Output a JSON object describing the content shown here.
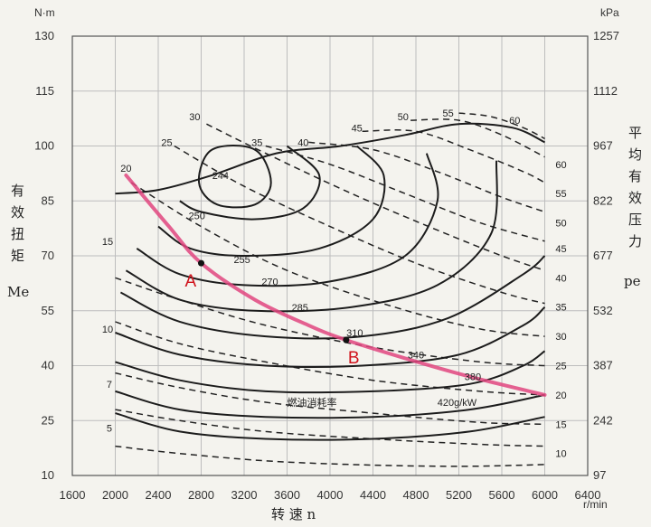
{
  "chart_data": {
    "type": "line",
    "x_axis": {
      "unit": "r/min",
      "title": "转 速 n",
      "ticks": [
        1600,
        2000,
        2400,
        2800,
        3200,
        3600,
        4000,
        4400,
        4800,
        5200,
        5600,
        6000,
        6400
      ],
      "range": [
        1600,
        6400
      ]
    },
    "y_left": {
      "unit": "N·m",
      "title": [
        "有",
        "效",
        "扭",
        "矩"
      ],
      "symbol": "Me",
      "ticks": [
        10,
        25,
        40,
        55,
        70,
        85,
        100,
        115,
        130
      ],
      "range": [
        10,
        130
      ]
    },
    "y_right": {
      "unit": "kPa",
      "title": [
        "平",
        "均",
        "有",
        "效",
        "压",
        "力"
      ],
      "symbol": "pe",
      "ticks": [
        97,
        242,
        387,
        532,
        677,
        822,
        967,
        1112,
        1257
      ]
    },
    "power_line_labels": [
      {
        "label": "60",
        "x": 6100,
        "y": 95
      },
      {
        "label": "55",
        "x": 6100,
        "y": 87
      },
      {
        "label": "50",
        "x": 6100,
        "y": 79
      },
      {
        "label": "45",
        "x": 6100,
        "y": 72
      },
      {
        "label": "40",
        "x": 6100,
        "y": 64
      },
      {
        "label": "35",
        "x": 6100,
        "y": 56
      },
      {
        "label": "30",
        "x": 6100,
        "y": 48
      },
      {
        "label": "25",
        "x": 6100,
        "y": 40
      },
      {
        "label": "20",
        "x": 6100,
        "y": 32
      },
      {
        "label": "15",
        "x": 6100,
        "y": 24
      },
      {
        "label": "10",
        "x": 6100,
        "y": 16
      }
    ],
    "power_top_labels": [
      {
        "label": "20",
        "x": 2100,
        "y": 93
      },
      {
        "label": "25",
        "x": 2480,
        "y": 100
      },
      {
        "label": "30",
        "x": 2740,
        "y": 107
      },
      {
        "label": "35",
        "x": 3320,
        "y": 100
      },
      {
        "label": "40",
        "x": 3750,
        "y": 100
      },
      {
        "label": "45",
        "x": 4250,
        "y": 104
      },
      {
        "label": "50",
        "x": 4680,
        "y": 107
      },
      {
        "label": "55",
        "x": 5100,
        "y": 108
      },
      {
        "label": "60",
        "x": 5720,
        "y": 106
      }
    ],
    "power_left_labels": [
      {
        "label": "15",
        "x": 1980,
        "y": 73
      },
      {
        "label": "10",
        "x": 1980,
        "y": 49
      },
      {
        "label": "7",
        "x": 1970,
        "y": 34
      },
      {
        "label": "5",
        "x": 1970,
        "y": 22
      }
    ],
    "bsfc_labels": [
      {
        "label": "244",
        "x": 2980,
        "y": 91
      },
      {
        "label": "250",
        "x": 2760,
        "y": 80
      },
      {
        "label": "255",
        "x": 3180,
        "y": 68
      },
      {
        "label": "270",
        "x": 3440,
        "y": 62
      },
      {
        "label": "285",
        "x": 3720,
        "y": 55
      },
      {
        "label": "310",
        "x": 4230,
        "y": 48
      },
      {
        "label": "340",
        "x": 4800,
        "y": 42
      },
      {
        "label": "380",
        "x": 5330,
        "y": 36
      }
    ],
    "bsfc_unit_label": {
      "label": "420g/kW",
      "x": 5000,
      "y": 29
    },
    "bsfc_caption": {
      "label": "燃油消耗率",
      "x": 3600,
      "y": 29
    },
    "points": [
      {
        "label": "A",
        "n": 2800,
        "Me": 68
      },
      {
        "label": "B",
        "n": 4150,
        "Me": 47
      }
    ],
    "footer_fragment": "r/min",
    "colors": {
      "highlight": "#e0457f",
      "points_label": "#d0121b",
      "curves": "#1c1c1c"
    }
  }
}
